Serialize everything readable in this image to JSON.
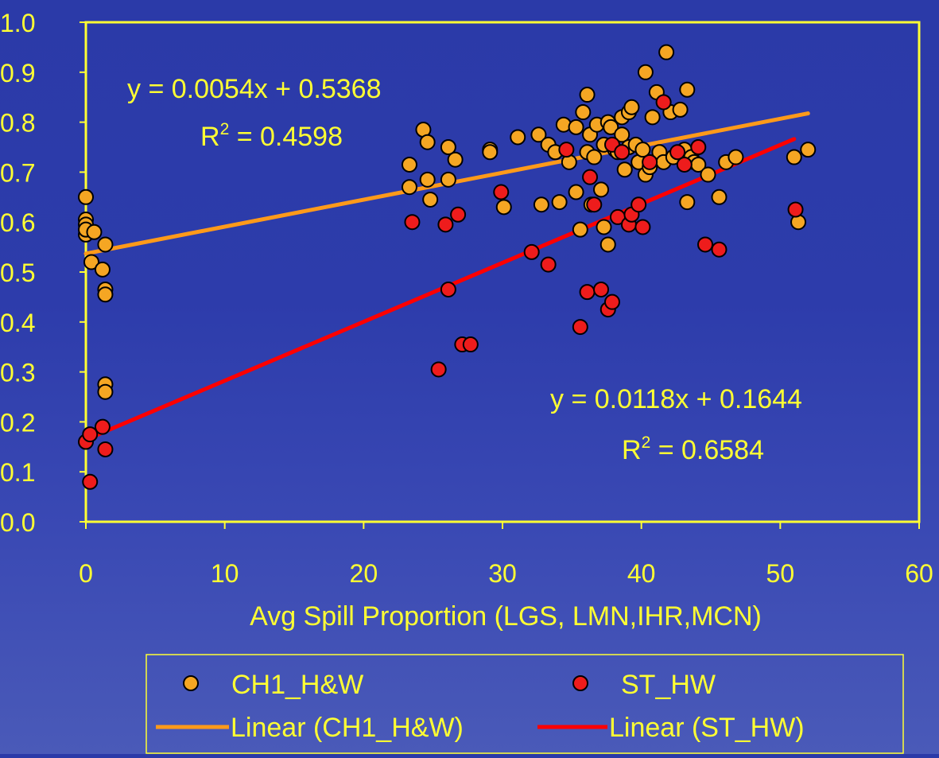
{
  "chart_data": {
    "type": "scatter",
    "xlabel": "Avg Spill Proportion (LGS, LMN,IHR,MCN)",
    "ylabel": "",
    "xlim": [
      0,
      60
    ],
    "ylim": [
      0,
      1.0
    ],
    "x_ticks": [
      "0",
      "10",
      "20",
      "30",
      "40",
      "50",
      "60"
    ],
    "y_ticks": [
      "0.0",
      "0.1",
      "0.2",
      "0.3",
      "0.4",
      "0.5",
      "0.6",
      "0.7",
      "0.8",
      "0.9",
      "1.0"
    ],
    "grid": false,
    "legend_position": "bottom",
    "colors": {
      "ch1": "#f5a623",
      "st": "#ee1c1c",
      "ch1_line": "#ff9a1a",
      "st_line": "#ff0000",
      "text": "#ffff33",
      "frame": "#ffff33",
      "marker_edge": "#000000"
    },
    "series": [
      {
        "name": "CH1_H&W",
        "points": [
          [
            0,
            0.65
          ],
          [
            0,
            0.605
          ],
          [
            0,
            0.595
          ],
          [
            0,
            0.575
          ],
          [
            0,
            0.585
          ],
          [
            0.6,
            0.58
          ],
          [
            0.4,
            0.52
          ],
          [
            1.2,
            0.505
          ],
          [
            1.4,
            0.555
          ],
          [
            1.4,
            0.465
          ],
          [
            1.4,
            0.455
          ],
          [
            1.4,
            0.275
          ],
          [
            1.4,
            0.26
          ],
          [
            23.3,
            0.715
          ],
          [
            23.3,
            0.67
          ],
          [
            24.3,
            0.785
          ],
          [
            24.6,
            0.76
          ],
          [
            24.6,
            0.685
          ],
          [
            24.8,
            0.645
          ],
          [
            26.1,
            0.75
          ],
          [
            26.1,
            0.685
          ],
          [
            26.6,
            0.725
          ],
          [
            29.1,
            0.745
          ],
          [
            29.1,
            0.74
          ],
          [
            30.1,
            0.63
          ],
          [
            31.1,
            0.77
          ],
          [
            32.6,
            0.775
          ],
          [
            32.8,
            0.635
          ],
          [
            33.3,
            0.755
          ],
          [
            33.8,
            0.74
          ],
          [
            34.1,
            0.64
          ],
          [
            34.4,
            0.795
          ],
          [
            34.8,
            0.72
          ],
          [
            35.3,
            0.66
          ],
          [
            35.3,
            0.79
          ],
          [
            35.6,
            0.585
          ],
          [
            35.8,
            0.82
          ],
          [
            36.1,
            0.74
          ],
          [
            36.1,
            0.855
          ],
          [
            36.3,
            0.775
          ],
          [
            36.4,
            0.635
          ],
          [
            36.6,
            0.73
          ],
          [
            36.8,
            0.795
          ],
          [
            37.1,
            0.665
          ],
          [
            37.3,
            0.755
          ],
          [
            37.3,
            0.59
          ],
          [
            37.6,
            0.8
          ],
          [
            37.6,
            0.555
          ],
          [
            37.8,
            0.79
          ],
          [
            38.1,
            0.745
          ],
          [
            38.3,
            0.74
          ],
          [
            38.6,
            0.775
          ],
          [
            38.6,
            0.81
          ],
          [
            38.8,
            0.705
          ],
          [
            39.1,
            0.75
          ],
          [
            39.1,
            0.82
          ],
          [
            39.3,
            0.83
          ],
          [
            39.6,
            0.755
          ],
          [
            39.8,
            0.72
          ],
          [
            40.1,
            0.745
          ],
          [
            40.3,
            0.9
          ],
          [
            40.3,
            0.695
          ],
          [
            40.6,
            0.71
          ],
          [
            40.8,
            0.81
          ],
          [
            41.1,
            0.86
          ],
          [
            41.3,
            0.74
          ],
          [
            41.6,
            0.72
          ],
          [
            41.8,
            0.94
          ],
          [
            42.1,
            0.82
          ],
          [
            42.3,
            0.73
          ],
          [
            42.8,
            0.825
          ],
          [
            43.1,
            0.745
          ],
          [
            43.3,
            0.865
          ],
          [
            43.3,
            0.64
          ],
          [
            43.6,
            0.73
          ],
          [
            43.8,
            0.72
          ],
          [
            44.1,
            0.715
          ],
          [
            44.8,
            0.695
          ],
          [
            45.6,
            0.65
          ],
          [
            46.1,
            0.72
          ],
          [
            46.8,
            0.73
          ],
          [
            51.0,
            0.73
          ],
          [
            51.3,
            0.6
          ],
          [
            52.0,
            0.745
          ]
        ]
      },
      {
        "name": "ST_HW",
        "points": [
          [
            0,
            0.16
          ],
          [
            0.3,
            0.175
          ],
          [
            0.3,
            0.08
          ],
          [
            1.2,
            0.19
          ],
          [
            1.4,
            0.145
          ],
          [
            23.5,
            0.6
          ],
          [
            25.4,
            0.305
          ],
          [
            25.9,
            0.595
          ],
          [
            26.1,
            0.465
          ],
          [
            26.8,
            0.615
          ],
          [
            27.1,
            0.355
          ],
          [
            27.7,
            0.355
          ],
          [
            29.9,
            0.66
          ],
          [
            32.1,
            0.54
          ],
          [
            33.3,
            0.515
          ],
          [
            34.6,
            0.745
          ],
          [
            35.6,
            0.39
          ],
          [
            36.1,
            0.46
          ],
          [
            36.3,
            0.69
          ],
          [
            36.6,
            0.635
          ],
          [
            37.1,
            0.465
          ],
          [
            37.6,
            0.425
          ],
          [
            37.9,
            0.44
          ],
          [
            37.9,
            0.755
          ],
          [
            38.3,
            0.61
          ],
          [
            38.6,
            0.74
          ],
          [
            39.1,
            0.595
          ],
          [
            39.3,
            0.615
          ],
          [
            39.8,
            0.635
          ],
          [
            40.1,
            0.59
          ],
          [
            40.6,
            0.72
          ],
          [
            41.6,
            0.84
          ],
          [
            42.6,
            0.74
          ],
          [
            43.1,
            0.715
          ],
          [
            44.1,
            0.75
          ],
          [
            44.6,
            0.555
          ],
          [
            45.6,
            0.545
          ],
          [
            51.1,
            0.625
          ]
        ]
      }
    ],
    "trendlines": [
      {
        "name": "Linear (CH1_H&W)",
        "slope": 0.0054,
        "intercept": 0.5368,
        "x_range": [
          0,
          52
        ]
      },
      {
        "name": "Linear (ST_HW)",
        "slope": 0.0118,
        "intercept": 0.1644,
        "x_range": [
          0,
          51
        ]
      }
    ],
    "annotations": {
      "ch1_eq": "y = 0.0054x + 0.5368",
      "ch1_r2_prefix": "R",
      "ch1_r2_sup": "2",
      "ch1_r2_value": " = 0.4598",
      "st_eq": "y = 0.0118x + 0.1644",
      "st_r2_prefix": "R",
      "st_r2_sup": "2",
      "st_r2_value": " = 0.6584"
    },
    "legend": {
      "ch1_marker": "CH1_H&W",
      "st_marker": "ST_HW",
      "ch1_line": "Linear (CH1_H&W)",
      "st_line": "Linear (ST_HW)"
    }
  }
}
